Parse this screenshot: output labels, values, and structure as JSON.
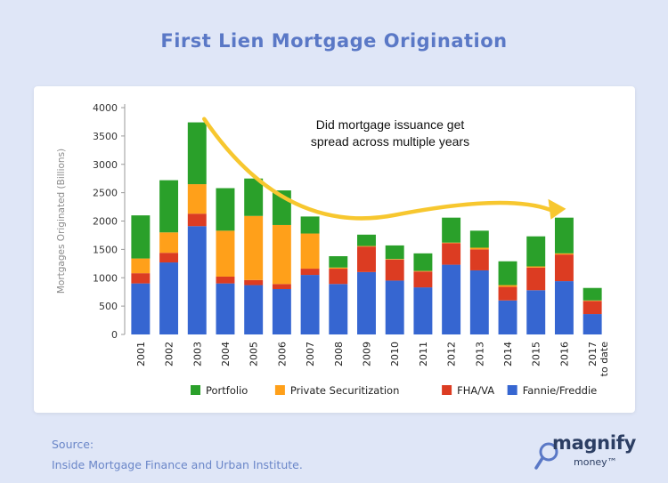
{
  "header": {
    "title": "First Lien Mortgage Origination"
  },
  "source": {
    "label": "Source:",
    "text": "Inside Mortgage Finance and Urban Institute."
  },
  "brand": {
    "name": "magnify",
    "sub": "money™"
  },
  "colors": {
    "portfolio": "#2aa02a",
    "private": "#ffa01a",
    "fha": "#dc3c22",
    "fannie": "#3666d1",
    "arrow": "#f7c72f",
    "title": "#5a78c6"
  },
  "chart_data": {
    "type": "bar",
    "stacked": true,
    "ylabel": "Mortgages Originated (Billions)",
    "ylim": [
      0,
      4000
    ],
    "yticks": [
      0,
      500,
      1000,
      1500,
      2000,
      2500,
      3000,
      3500,
      4000
    ],
    "grid": false,
    "legend_position": "bottom",
    "categories": [
      "2001",
      "2002",
      "2003",
      "2004",
      "2005",
      "2006",
      "2007",
      "2008",
      "2009",
      "2010",
      "2011",
      "2012",
      "2013",
      "2014",
      "2015",
      "2016",
      "2017 to date"
    ],
    "series": [
      {
        "name": "Fannie/Freddie",
        "color": "#3666d1",
        "values": [
          900,
          1270,
          1910,
          900,
          870,
          800,
          1050,
          890,
          1100,
          950,
          830,
          1230,
          1130,
          600,
          780,
          940,
          360
        ]
      },
      {
        "name": "FHA/VA",
        "color": "#dc3c22",
        "values": [
          180,
          170,
          220,
          120,
          90,
          90,
          110,
          270,
          450,
          370,
          280,
          380,
          370,
          240,
          400,
          470,
          230
        ]
      },
      {
        "name": "Private Securitization",
        "color": "#ffa01a",
        "values": [
          260,
          360,
          520,
          810,
          1130,
          1040,
          620,
          20,
          10,
          10,
          10,
          10,
          30,
          30,
          20,
          20,
          10
        ]
      },
      {
        "name": "Portfolio",
        "color": "#2aa02a",
        "values": [
          760,
          920,
          1090,
          750,
          660,
          610,
          300,
          200,
          200,
          240,
          310,
          440,
          300,
          420,
          530,
          630,
          220
        ]
      }
    ],
    "legend_order": [
      "Portfolio",
      "Private Securitization",
      "FHA/VA",
      "Fannie/Freddie"
    ],
    "annotation": {
      "text_lines": [
        "Did mortgage issuance get",
        "spread across multiple years"
      ],
      "arrow_from": [
        "2003",
        3800
      ],
      "arrow_to": [
        "2016",
        2200
      ]
    }
  }
}
